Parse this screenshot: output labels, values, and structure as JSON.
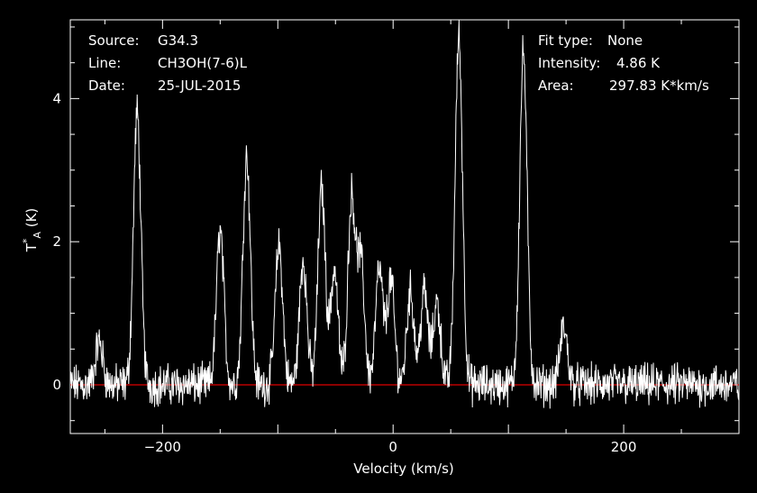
{
  "header": {
    "left": [
      {
        "label": "Source:",
        "value": "G34.3"
      },
      {
        "label": "Line:",
        "value": "CH3OH(7-6)L"
      },
      {
        "label": "Date:",
        "value": "25-JUL-2015"
      }
    ],
    "right": [
      {
        "label": "Fit type:",
        "value": "None"
      },
      {
        "label": "Intensity:",
        "value": "4.86 K"
      },
      {
        "label": "Area:",
        "value": "297.83 K*km/s"
      }
    ]
  },
  "colors": {
    "background": "#000000",
    "foreground": "#ffffff",
    "baseline": "#e00000"
  },
  "chart_data": {
    "type": "line",
    "xlabel": "Velocity (km/s)",
    "ylabel": "T*A (K)",
    "xlim": [
      -280,
      300
    ],
    "ylim": [
      -0.68,
      5.1
    ],
    "xticks": [
      -200,
      0,
      200
    ],
    "yticks": [
      0,
      2,
      4
    ],
    "grid": false,
    "baseline_y": 0,
    "peaks": [
      {
        "x": -255,
        "y": 0.6
      },
      {
        "x": -222,
        "y": 3.8
      },
      {
        "x": -150,
        "y": 2.15
      },
      {
        "x": -127,
        "y": 3.2
      },
      {
        "x": -99,
        "y": 1.95
      },
      {
        "x": -78,
        "y": 1.75
      },
      {
        "x": -62,
        "y": 2.75
      },
      {
        "x": -51,
        "y": 1.6
      },
      {
        "x": -36,
        "y": 2.6
      },
      {
        "x": -28,
        "y": 1.7
      },
      {
        "x": -12,
        "y": 1.6
      },
      {
        "x": -2,
        "y": 1.45
      },
      {
        "x": 15,
        "y": 1.3
      },
      {
        "x": 27,
        "y": 1.3
      },
      {
        "x": 38,
        "y": 1.15
      },
      {
        "x": 57,
        "y": 4.86
      },
      {
        "x": 113,
        "y": 4.65
      },
      {
        "x": 148,
        "y": 0.8
      }
    ]
  }
}
